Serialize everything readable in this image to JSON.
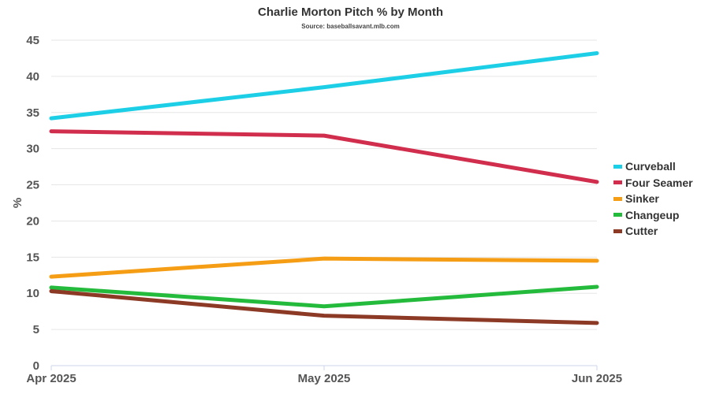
{
  "chart_data": {
    "type": "line",
    "title": "Charlie Morton Pitch % by Month",
    "subtitle": "Source: baseballsavant.mlb.com",
    "xlabel": "",
    "ylabel": "%",
    "categories": [
      "Apr 2025",
      "May 2025",
      "Jun 2025"
    ],
    "ylim": [
      0,
      45
    ],
    "yticks": [
      0,
      5,
      10,
      15,
      20,
      25,
      30,
      35,
      40,
      45
    ],
    "grid": true,
    "legend_position": "right",
    "series": [
      {
        "name": "Curveball",
        "color": "#1ccfe6",
        "values": [
          34.2,
          38.5,
          43.2
        ]
      },
      {
        "name": "Four Seamer",
        "color": "#d12e4d",
        "values": [
          32.4,
          31.8,
          25.4
        ]
      },
      {
        "name": "Sinker",
        "color": "#f59d14",
        "values": [
          12.3,
          14.8,
          14.5
        ]
      },
      {
        "name": "Changeup",
        "color": "#24bb3c",
        "values": [
          10.8,
          8.2,
          10.9
        ]
      },
      {
        "name": "Cutter",
        "color": "#8c3a26",
        "values": [
          10.3,
          6.9,
          5.9
        ]
      }
    ]
  }
}
